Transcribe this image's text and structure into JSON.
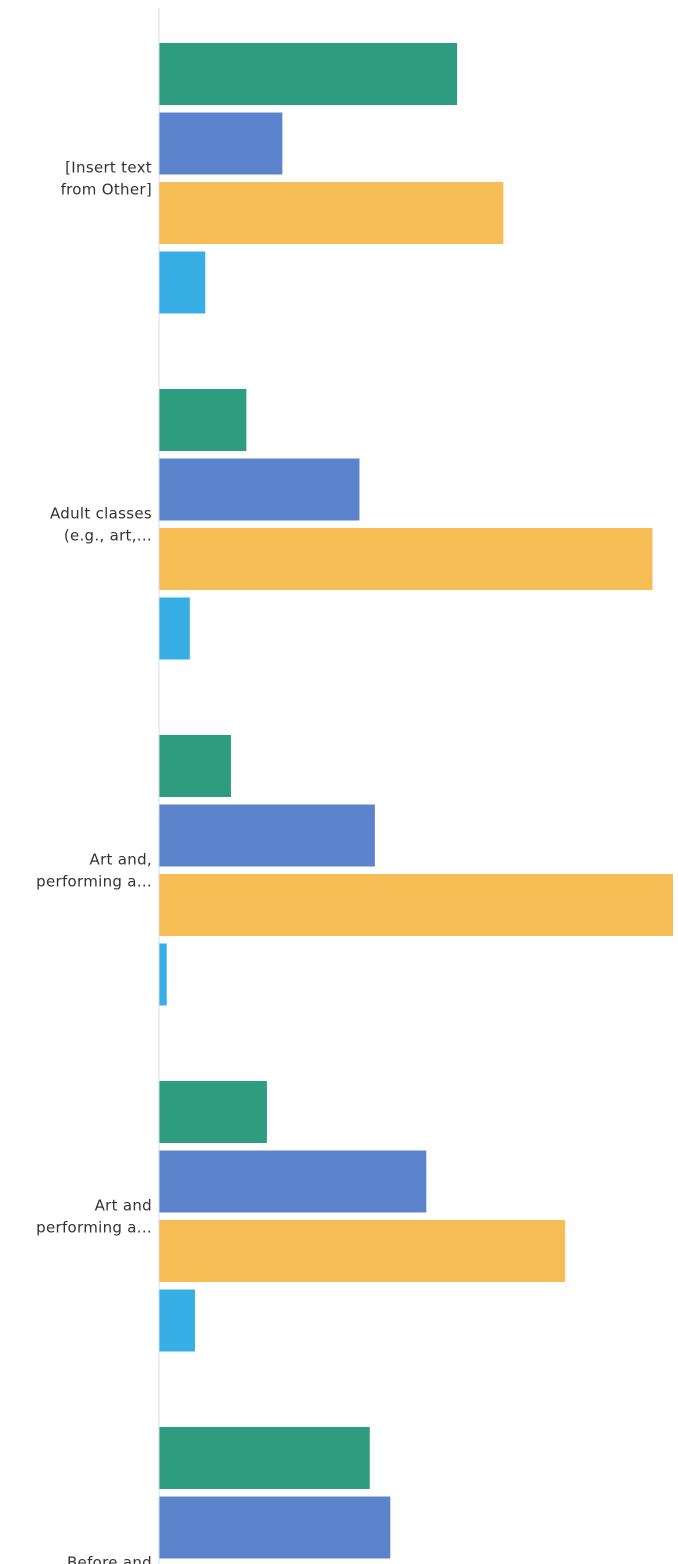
{
  "chart_data": {
    "type": "bar",
    "orientation": "horizontal",
    "categories": [
      [
        "[Insert text",
        "from Other]"
      ],
      [
        "Adult classes",
        "(e.g., art,..."
      ],
      [
        "Art and,",
        "performing a..."
      ],
      [
        "Art and",
        "performing a..."
      ],
      [
        "Before and",
        ""
      ]
    ],
    "series": [
      {
        "color": "#2e9c7e",
        "values": [
          58,
          17,
          14,
          21,
          41
        ]
      },
      {
        "color": "#5b84cc",
        "values": [
          24,
          39,
          42,
          52,
          45
        ]
      },
      {
        "color": "#f6bd55",
        "values": [
          67,
          96,
          100,
          79,
          null
        ]
      },
      {
        "color": "#37afe6",
        "values": [
          9,
          6,
          1.5,
          7,
          null
        ]
      }
    ],
    "xlim": [
      0,
      100
    ],
    "grid": false,
    "legend": "none"
  }
}
